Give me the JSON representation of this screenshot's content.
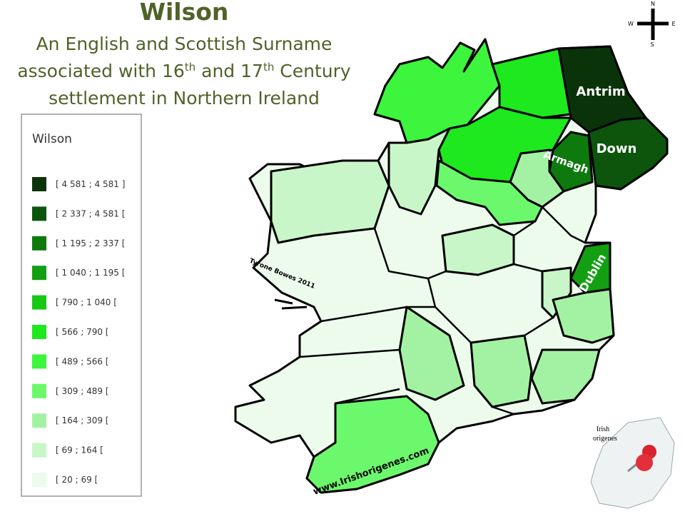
{
  "header": {
    "title": "Wilson",
    "subtitle": {
      "line1": "An English and Scottish Surname",
      "line2": [
        "associated with 16",
        "th",
        " and 17",
        "th",
        " Century"
      ],
      "line3": "settlement in Northern Ireland"
    }
  },
  "legend": {
    "title": "Wilson",
    "items": [
      {
        "label": "[ 4 581 ; 4 581 ]",
        "color": "#0a330a"
      },
      {
        "label": "[ 2 337 ; 4 581 [",
        "color": "#0d550d"
      },
      {
        "label": "[ 1 195 ; 2 337 [",
        "color": "#0e7a0e"
      },
      {
        "label": "[ 1 040 ; 1 195 [",
        "color": "#12a012"
      },
      {
        "label": "[ 790 ; 1 040 [",
        "color": "#17c817"
      },
      {
        "label": "[ 566 ; 790 [",
        "color": "#1ee81e"
      },
      {
        "label": "[ 489 ; 566 [",
        "color": "#3cf53c"
      },
      {
        "label": "[ 309 ; 489 [",
        "color": "#6cf86c"
      },
      {
        "label": "[ 164 ; 309 [",
        "color": "#a3f2a3"
      },
      {
        "label": "[ 69 ; 164 [",
        "color": "#c8f6c8"
      },
      {
        "label": "[ 20 ; 69 [",
        "color": "#ecfbec"
      }
    ]
  },
  "map": {
    "labels": {
      "antrim": "Antrim",
      "down": "Down",
      "armagh": "Armagh",
      "dublin": "Dublin"
    },
    "credit": "Tyrone Bowes 2011",
    "website": "www.Irishorigenes.com"
  },
  "compass": {
    "n": "N",
    "w": "W",
    "e": "E",
    "s": "S"
  },
  "logo": {
    "line1": "Irish",
    "line2": "origenes"
  }
}
